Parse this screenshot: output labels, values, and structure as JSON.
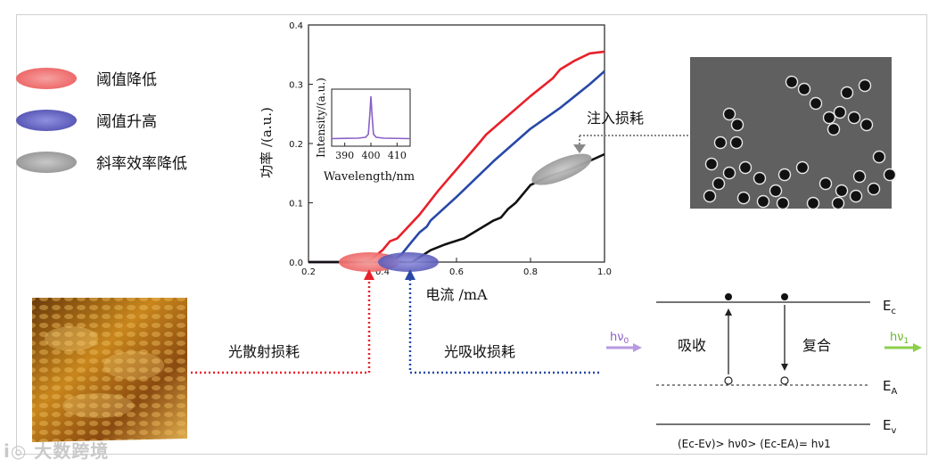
{
  "legend": {
    "items": [
      {
        "label": "阈值降低",
        "color": "#f07373"
      },
      {
        "label": "阈值升高",
        "color": "#6e6ec8"
      },
      {
        "label": "斜率效率降低",
        "color": "#a8a8a8"
      }
    ]
  },
  "annotations": {
    "injection_loss": "注入损耗",
    "scatter_loss": "光散射损耗",
    "absorption_loss": "光吸收损耗"
  },
  "energy_diagram": {
    "ec": "E",
    "ec_sub": "c",
    "ea": "E",
    "ea_sub": "A",
    "ev": "E",
    "ev_sub": "v",
    "absorb": "吸收",
    "recombine": "复合",
    "hv0": "hν",
    "hv0_sub": "0",
    "hv1": "hν",
    "hv1_sub": "1",
    "formula": "(Ec-Ev)> hν0> (Ec-EA)=  hν1"
  },
  "chart_data": [
    {
      "type": "line",
      "title": "",
      "xlabel": "电流 /mA",
      "ylabel": "功率 /(a.u.)",
      "xlim": [
        0.2,
        1.0
      ],
      "ylim": [
        0,
        0.4
      ],
      "xticks": [
        "0.2",
        "0.4",
        "0.6",
        "0.8",
        "1.0"
      ],
      "yticks": [
        "0.0",
        "0.1",
        "0.2",
        "0.3",
        "0.4"
      ],
      "series": [
        {
          "name": "red",
          "color": "#e8202a",
          "x": [
            0.2,
            0.35,
            0.37,
            0.4,
            0.42,
            0.44,
            0.5,
            0.55,
            0.66,
            0.68,
            0.8,
            0.86,
            0.88,
            0.92,
            0.96,
            1.0
          ],
          "y": [
            0.0,
            0.0,
            0.005,
            0.02,
            0.035,
            0.04,
            0.08,
            0.12,
            0.2,
            0.215,
            0.28,
            0.31,
            0.325,
            0.34,
            0.352,
            0.355
          ]
        },
        {
          "name": "blue",
          "color": "#2848a8",
          "x": [
            0.2,
            0.42,
            0.45,
            0.48,
            0.5,
            0.52,
            0.53,
            0.6,
            0.7,
            0.8,
            0.88,
            0.92,
            0.96,
            1.0
          ],
          "y": [
            0.0,
            0.0,
            0.012,
            0.035,
            0.05,
            0.06,
            0.07,
            0.11,
            0.17,
            0.225,
            0.26,
            0.28,
            0.3,
            0.322
          ]
        },
        {
          "name": "black",
          "color": "#111111",
          "x": [
            0.2,
            0.48,
            0.5,
            0.53,
            0.57,
            0.62,
            0.66,
            0.7,
            0.72,
            0.74,
            0.76,
            0.8,
            0.85,
            0.9,
            0.95,
            1.0
          ],
          "y": [
            0.0,
            0.0,
            0.008,
            0.02,
            0.03,
            0.04,
            0.055,
            0.07,
            0.075,
            0.09,
            0.1,
            0.13,
            0.145,
            0.155,
            0.168,
            0.182
          ]
        }
      ]
    },
    {
      "type": "line",
      "title": "inset",
      "xlabel": "Wavelength/nm",
      "ylabel": "Intensity/(a.u.)",
      "xlim": [
        385,
        415
      ],
      "xticks": [
        "390",
        "400",
        "410"
      ],
      "series": [
        {
          "name": "spectrum",
          "color": "#8a5fc8",
          "x": [
            385,
            395,
            398,
            399,
            399.6,
            400,
            400.4,
            401,
            402,
            405,
            415
          ],
          "y": [
            0.05,
            0.06,
            0.08,
            0.15,
            0.6,
            1.0,
            0.6,
            0.15,
            0.08,
            0.06,
            0.05
          ]
        }
      ]
    }
  ]
}
